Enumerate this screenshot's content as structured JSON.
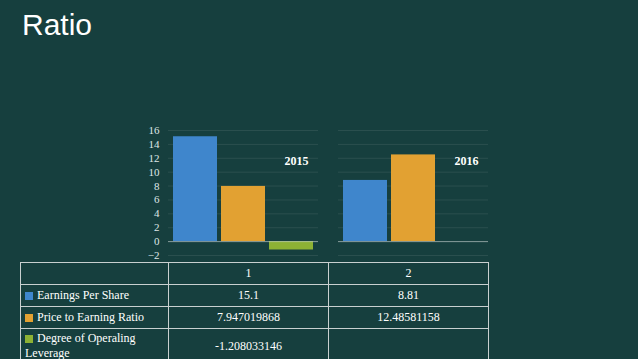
{
  "chart_data": {
    "type": "bar",
    "title": "Ratio",
    "categories": [
      "1",
      "2"
    ],
    "series": [
      {
        "name": "Earnings Per Share",
        "color": "#3f86cc",
        "values": [
          15.1,
          8.81
        ]
      },
      {
        "name": "Price to Earning Ratio",
        "color": "#e2a132",
        "values": [
          7.947019868,
          12.48581158
        ]
      },
      {
        "name": "Degree of Operaling Leverage",
        "color": "#8db234",
        "values": [
          -1.208033146,
          null
        ]
      }
    ],
    "annotations": [
      {
        "text": "2015",
        "category": "1"
      },
      {
        "text": "2016",
        "category": "2"
      }
    ],
    "ylim": [
      -2,
      16
    ],
    "yticks": [
      -2,
      0,
      2,
      4,
      6,
      8,
      10,
      12,
      14,
      16
    ],
    "grid": true,
    "data_labels": false
  }
}
